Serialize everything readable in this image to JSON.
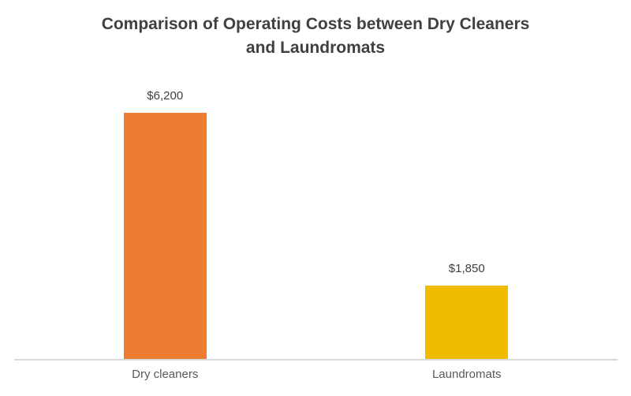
{
  "header": {
    "title_line1": "Comparison of Operating Costs between Dry Cleaners",
    "title_line2": "and Laundromats"
  },
  "chart_data": {
    "type": "bar",
    "title": "Comparison of Operating Costs between Dry Cleaners and Laundromats",
    "categories": [
      "Dry cleaners",
      "Laundromats"
    ],
    "values": [
      6200,
      1850
    ],
    "data_labels": [
      "$6,200",
      "$1,850"
    ],
    "bar_colors": [
      "#ED7D31",
      "#F0BC00"
    ],
    "ylim": [
      0,
      7000
    ],
    "xlabel": "",
    "ylabel": "",
    "grid": false,
    "legend": false,
    "background": "#FFFFFF",
    "axis_line_color": "#D9D9D9",
    "title_color": "#404040",
    "value_label_color": "#404040",
    "category_label_color": "#595959"
  }
}
